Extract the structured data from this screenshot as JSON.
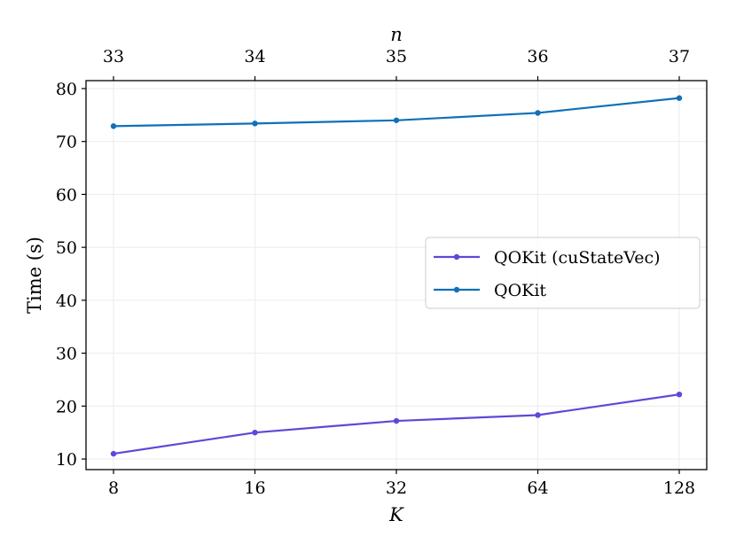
{
  "chart_data": {
    "type": "line",
    "x": [
      8,
      16,
      32,
      64,
      128
    ],
    "x_tick_labels": [
      "8",
      "16",
      "32",
      "64",
      "128"
    ],
    "x_scale": "log2",
    "xlabel": "K",
    "top_axis": {
      "label": "n",
      "tick_labels": [
        "33",
        "34",
        "35",
        "36",
        "37"
      ]
    },
    "ylabel": "Time (s)",
    "ylim": [
      8,
      81.5
    ],
    "y_ticks": [
      10,
      20,
      30,
      40,
      50,
      60,
      70,
      80
    ],
    "y_tick_labels": [
      "10",
      "20",
      "30",
      "40",
      "50",
      "60",
      "70",
      "80"
    ],
    "grid": true,
    "legend_position": "right",
    "series": [
      {
        "name": "QOKit (cuStateVec)",
        "color": "#5e48d8",
        "values": [
          11.0,
          15.0,
          17.2,
          18.3,
          22.2
        ]
      },
      {
        "name": "QOKit",
        "color": "#1070b8",
        "values": [
          72.9,
          73.4,
          74.0,
          75.4,
          78.2
        ]
      }
    ]
  }
}
